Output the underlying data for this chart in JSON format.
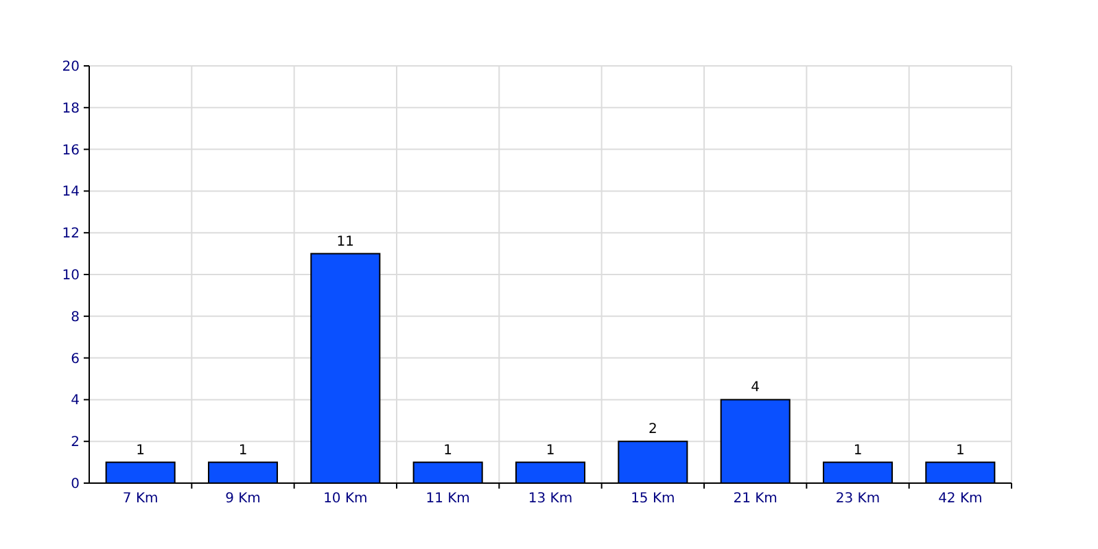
{
  "chart_data": {
    "type": "bar",
    "categories": [
      "7 Km",
      "9 Km",
      "10 Km",
      "11 Km",
      "13 Km",
      "15 Km",
      "21 Km",
      "23 Km",
      "42 Km"
    ],
    "values": [
      1,
      1,
      11,
      1,
      1,
      2,
      4,
      1,
      1
    ],
    "color": "#0a50ff",
    "ylim": [
      0,
      20
    ],
    "yticks": [
      0,
      2,
      4,
      6,
      8,
      10,
      12,
      14,
      16,
      18,
      20
    ],
    "grid": true,
    "data_labels": true
  }
}
